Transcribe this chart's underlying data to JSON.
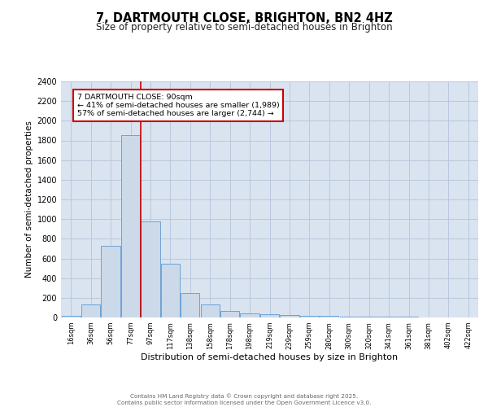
{
  "title1": "7, DARTMOUTH CLOSE, BRIGHTON, BN2 4HZ",
  "title2": "Size of property relative to semi-detached houses in Brighton",
  "xlabel": "Distribution of semi-detached houses by size in Brighton",
  "ylabel": "Number of semi-detached properties",
  "bar_labels": [
    "16sqm",
    "36sqm",
    "56sqm",
    "77sqm",
    "97sqm",
    "117sqm",
    "138sqm",
    "158sqm",
    "178sqm",
    "198sqm",
    "219sqm",
    "239sqm",
    "259sqm",
    "280sqm",
    "300sqm",
    "320sqm",
    "341sqm",
    "361sqm",
    "381sqm",
    "402sqm",
    "422sqm"
  ],
  "bar_values": [
    20,
    130,
    730,
    1850,
    980,
    550,
    250,
    130,
    70,
    45,
    30,
    25,
    20,
    15,
    10,
    10,
    8,
    5,
    3,
    3,
    2
  ],
  "bar_color": "#ccd9e8",
  "bar_edge_color": "#5b9bd5",
  "grid_color": "#b8c8dc",
  "background_color": "#d9e4f0",
  "annotation_text": "7 DARTMOUTH CLOSE: 90sqm\n← 41% of semi-detached houses are smaller (1,989)\n57% of semi-detached houses are larger (2,744) →",
  "annotation_box_color": "#ffffff",
  "annotation_border_color": "#cc0000",
  "footer_text": "Contains HM Land Registry data © Crown copyright and database right 2025.\nContains public sector information licensed under the Open Government Licence v3.0.",
  "ylim": [
    0,
    2400
  ],
  "yticks": [
    0,
    200,
    400,
    600,
    800,
    1000,
    1200,
    1400,
    1600,
    1800,
    2000,
    2200,
    2400
  ]
}
